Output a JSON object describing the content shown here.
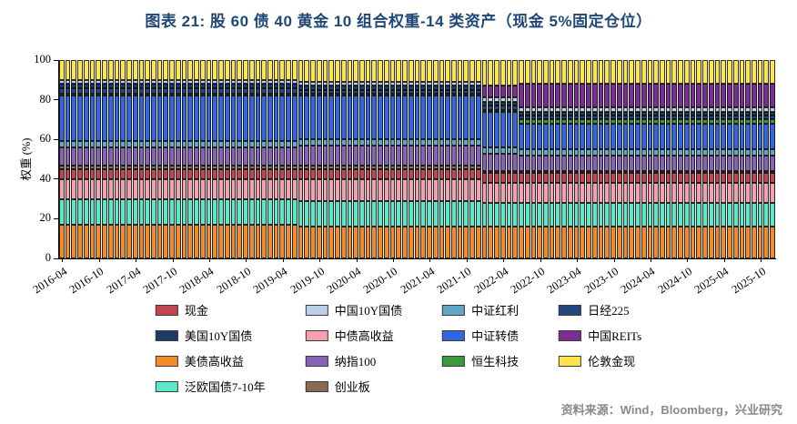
{
  "title": "图表 21: 股 60 债 40 黄金 10 组合权重-14 类资产（现金 5%固定仓位）",
  "source": "资料来源：Wind，Bloomberg，兴业研究",
  "chart_data": {
    "type": "bar",
    "stacked": true,
    "unit": "%",
    "title": "图表 21: 股 60 债 40 黄金 10 组合权重-14 类资产（现金 5%固定仓位）",
    "xlabel": "",
    "ylabel": "权重 (%)",
    "ylim": [
      0,
      100
    ],
    "yticks": [
      0,
      20,
      40,
      60,
      80,
      100
    ],
    "grid": false,
    "x_unit": "month",
    "x_start": "2016-04",
    "x_end": "2025-12",
    "xticks": [
      "2016-04",
      "2016-10",
      "2017-04",
      "2017-10",
      "2018-04",
      "2018-10",
      "2019-04",
      "2019-10",
      "2020-04",
      "2020-10",
      "2021-04",
      "2021-10",
      "2022-04",
      "2022-10",
      "2023-04",
      "2023-10",
      "2024-04",
      "2024-10",
      "2025-04",
      "2025-10"
    ],
    "series": [
      {
        "name": "现金",
        "color": "#C24552"
      },
      {
        "name": "美国10Y国债",
        "color": "#1E3A66"
      },
      {
        "name": "美债高收益",
        "color": "#F28C28"
      },
      {
        "name": "泛欧国债7-10年",
        "color": "#5CE8C4"
      },
      {
        "name": "中国10Y国债",
        "color": "#BCCEE8"
      },
      {
        "name": "中债高收益",
        "color": "#F4A0AE"
      },
      {
        "name": "纳指100",
        "color": "#8763B8"
      },
      {
        "name": "创业板",
        "color": "#8A6A52"
      },
      {
        "name": "中证红利",
        "color": "#62A8C4"
      },
      {
        "name": "中证转债",
        "color": "#3366E0"
      },
      {
        "name": "恒生科技",
        "color": "#3B9A3B"
      },
      {
        "name": "日经225",
        "color": "#24477E"
      },
      {
        "name": "中国REITs",
        "color": "#7C2E94"
      },
      {
        "name": "伦敦金现",
        "color": "#FFE44D"
      }
    ],
    "stack_order": [
      "美债高收益",
      "泛欧国债7-10年",
      "中债高收益",
      "现金",
      "创业板",
      "纳指100",
      "中证红利",
      "中证转债",
      "恒生科技",
      "日经225",
      "美国10Y国债",
      "中国10Y国债",
      "中国REITs",
      "伦敦金现"
    ],
    "periods": [
      {
        "from": "2016-04",
        "to": "2019-06",
        "weights": {
          "现金": 5,
          "美国10Y国债": 2,
          "美债高收益": 17,
          "泛欧国债7-10年": 13,
          "中国10Y国债": 2,
          "中债高收益": 10,
          "纳指100": 9,
          "创业板": 2,
          "中证红利": 3,
          "中证转债": 23,
          "恒生科技": 1,
          "日经225": 3,
          "中国REITs": 0,
          "伦敦金现": 10
        }
      },
      {
        "from": "2019-07",
        "to": "2021-12",
        "weights": {
          "现金": 5,
          "美国10Y国债": 2,
          "美债高收益": 16,
          "泛欧国债7-10年": 13,
          "中国10Y国债": 2,
          "中债高收益": 11,
          "纳指100": 10,
          "创业板": 2,
          "中证红利": 3,
          "中证转债": 22,
          "恒生科技": 1,
          "日经225": 2,
          "中国REITs": 0,
          "伦敦金现": 11
        }
      },
      {
        "from": "2022-01",
        "to": "2022-06",
        "weights": {
          "现金": 5,
          "美国10Y国债": 2,
          "美债高收益": 16,
          "泛欧国债7-10年": 12,
          "中国10Y国债": 2,
          "中债高收益": 10,
          "纳指100": 9,
          "创业板": 1,
          "中证红利": 3,
          "中证转债": 18,
          "恒生科技": 1,
          "日经225": 2,
          "中国REITs": 6,
          "伦敦金现": 13
        }
      },
      {
        "from": "2022-07",
        "to": "2025-12",
        "weights": {
          "现金": 5,
          "美国10Y国债": 2,
          "美债高收益": 16,
          "泛欧国债7-10年": 12,
          "中国10Y国债": 2,
          "中债高收益": 10,
          "纳指100": 8,
          "创业板": 1,
          "中证红利": 3,
          "中证转债": 13,
          "恒生科技": 2,
          "日经225": 2,
          "中国REITs": 12,
          "伦敦金现": 12
        }
      }
    ],
    "legend": {
      "position": "bottom",
      "columns": [
        [
          "现金",
          "美国10Y国债",
          "美债高收益",
          "泛欧国债7-10年"
        ],
        [
          "中国10Y国债",
          "中债高收益",
          "纳指100",
          "创业板"
        ],
        [
          "中证红利",
          "中证转债",
          "恒生科技"
        ],
        [
          "日经225",
          "中国REITs",
          "伦敦金现"
        ]
      ]
    }
  }
}
